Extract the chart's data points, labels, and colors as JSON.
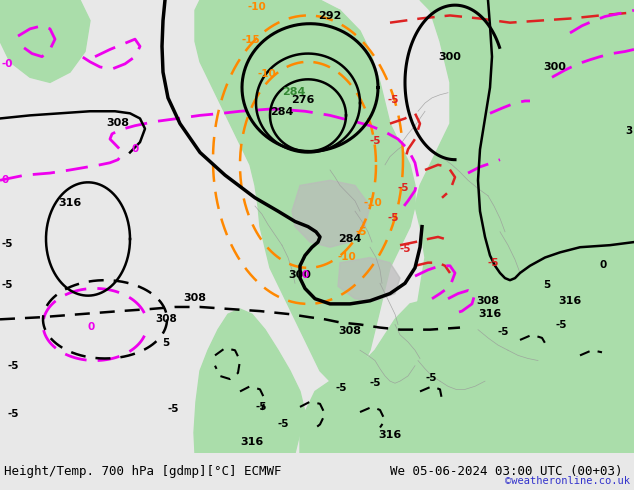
{
  "title_left": "Height/Temp. 700 hPa [gdmp][°C] ECMWF",
  "title_right": "We 05-06-2024 03:00 UTC (00+03)",
  "credit": "©weatheronline.co.uk",
  "ocean_color": "#d4d4d4",
  "land_green_color": "#aaddaa",
  "land_green2_color": "#88cc88",
  "coast_color": "#aaaaaa",
  "black_contour_color": "#000000",
  "orange_contour_color": "#ff8800",
  "red_contour_color": "#dd2222",
  "magenta_contour_color": "#ee00ee",
  "green_label_color": "#338833",
  "figsize": [
    6.34,
    4.9
  ],
  "dpi": 100,
  "bar_color": "#e8e8e8",
  "title_fontsize": 9.0,
  "credit_fontsize": 7.5,
  "credit_color": "#3333cc"
}
